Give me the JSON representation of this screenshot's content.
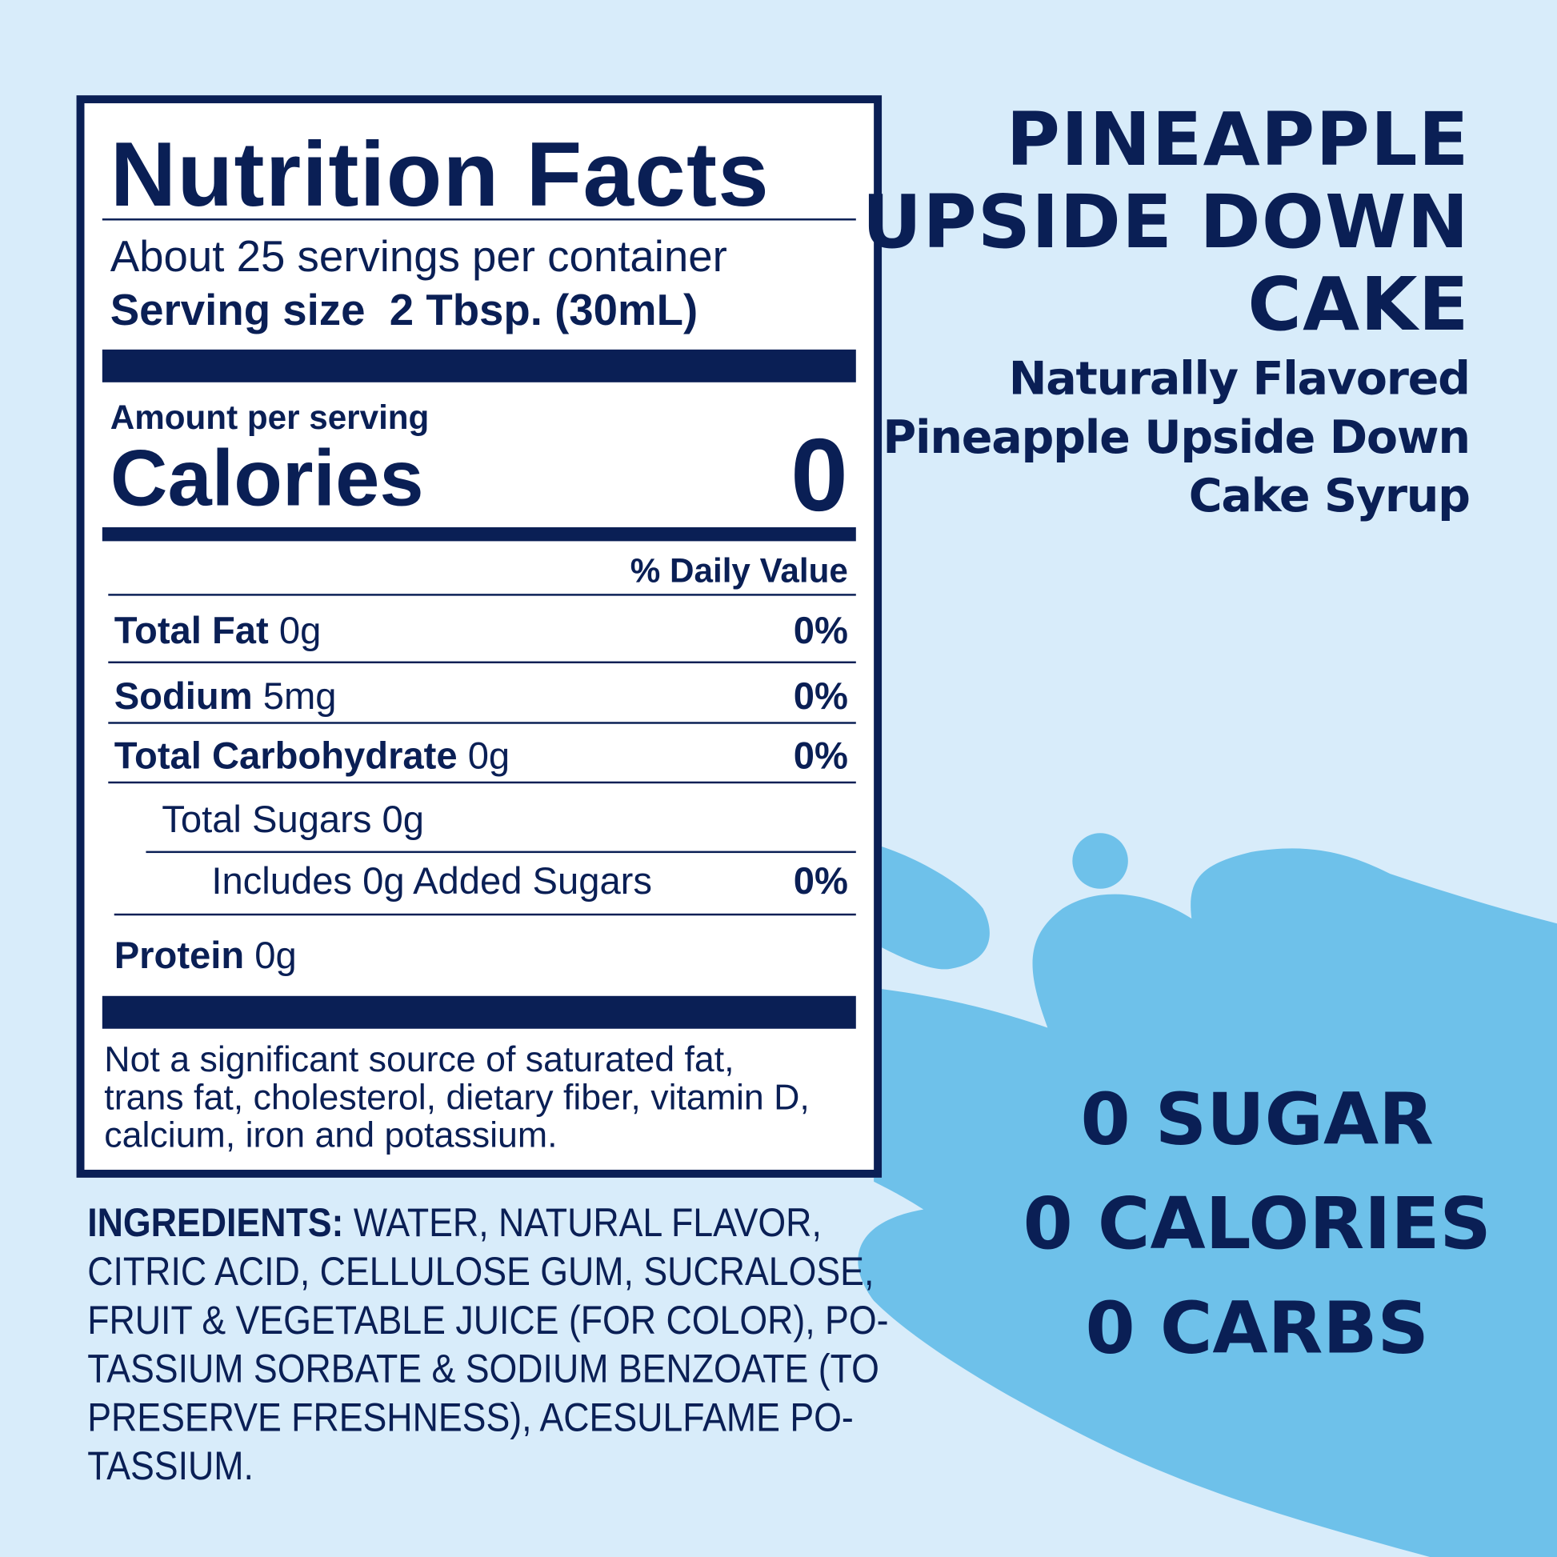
{
  "colors": {
    "background": "#d8ecfa",
    "splash": "#6ec1ea",
    "navy": "#0a1f55",
    "label_bg": "#ffffff"
  },
  "nutrition": {
    "title": "Nutrition Facts",
    "servings": "About 25 servings per container",
    "serving_size_label": "Serving size",
    "serving_size_value": "2 Tbsp. (30mL)",
    "amount_per_serving": "Amount per serving",
    "calories_label": "Calories",
    "calories_value": "0",
    "daily_value_header": "% Daily Value",
    "rows": [
      {
        "name": "Total Fat",
        "amount": "0g",
        "dv": "0%"
      },
      {
        "name": "Sodium",
        "amount": "5mg",
        "dv": "0%"
      },
      {
        "name": "Total Carbohydrate",
        "amount": "0g",
        "dv": "0%"
      },
      {
        "name": "Total Sugars 0g",
        "amount": "",
        "dv": ""
      },
      {
        "name": "Includes 0g Added Sugars",
        "amount": "",
        "dv": "0%"
      },
      {
        "name": "Protein",
        "amount": "0g",
        "dv": ""
      }
    ],
    "footnote": [
      "Not a significant source of saturated fat,",
      "trans fat, cholesterol, dietary fiber, vitamin D,",
      "calcium, iron and potassium."
    ]
  },
  "ingredients": {
    "label": "INGREDIENTS:",
    "lines": [
      " WATER, NATURAL FLAVOR,",
      "CITRIC ACID, CELLULOSE GUM, SUCRALOSE,",
      "FRUIT & VEGETABLE JUICE (FOR COLOR), PO-",
      "TASSIUM SORBATE & SODIUM BENZOATE (TO",
      "PRESERVE FRESHNESS), ACESULFAME PO-",
      "TASSIUM."
    ]
  },
  "product": {
    "title_lines": [
      "PINEAPPLE",
      "UPSIDE DOWN",
      "CAKE"
    ],
    "subtitle_lines": [
      "Naturally Flavored",
      "Pineapple Upside Down",
      "Cake Syrup"
    ]
  },
  "claims": [
    "0 SUGAR",
    "0 CALORIES",
    "0 CARBS"
  ]
}
